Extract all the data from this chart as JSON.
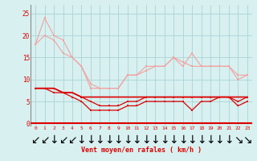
{
  "x": [
    0,
    1,
    2,
    3,
    4,
    5,
    6,
    7,
    8,
    9,
    10,
    11,
    12,
    13,
    14,
    15,
    16,
    17,
    18,
    19,
    20,
    21,
    22,
    23
  ],
  "line1": [
    18,
    24,
    20,
    19,
    15,
    13,
    8,
    8,
    8,
    8,
    11,
    11,
    13,
    13,
    13,
    15,
    13,
    16,
    13,
    13,
    13,
    13,
    10,
    11
  ],
  "line2": [
    18,
    20,
    19,
    16,
    15,
    13,
    9,
    8,
    8,
    8,
    11,
    11,
    12,
    13,
    13,
    15,
    14,
    13,
    13,
    13,
    13,
    13,
    11,
    11
  ],
  "line3": [
    8,
    8,
    8,
    7,
    7,
    6,
    5,
    4,
    4,
    4,
    5,
    5,
    6,
    6,
    6,
    6,
    6,
    6,
    6,
    6,
    6,
    6,
    5,
    6
  ],
  "line4": [
    8,
    8,
    7,
    7,
    6,
    5,
    3,
    3,
    3,
    3,
    4,
    4,
    5,
    5,
    5,
    5,
    5,
    3,
    5,
    5,
    6,
    6,
    4,
    5
  ],
  "line5": [
    8,
    8,
    8,
    7,
    7,
    6,
    6,
    6,
    6,
    6,
    6,
    6,
    6,
    6,
    6,
    6,
    6,
    6,
    6,
    6,
    6,
    6,
    6,
    6
  ],
  "color_light": "#f4a0a0",
  "color_dark": "#dd0000",
  "bg_color": "#d8f0f0",
  "grid_color": "#aad4d4",
  "xlabel": "Vent moyen/en rafales ( km/h )",
  "yticks": [
    0,
    5,
    10,
    15,
    20,
    25
  ],
  "ylim": [
    -0.5,
    27
  ],
  "xlim": [
    -0.5,
    23.5
  ],
  "arrow_labels": [
    "↙",
    "↙",
    "↓",
    "↙",
    "↙",
    "↓",
    "↓",
    "↓",
    "↓",
    "↓",
    "↓",
    "↓",
    "↓",
    "↓",
    "↓",
    "↓",
    "↓",
    "↓",
    "↓",
    "↓",
    "↓",
    "↓",
    "↘",
    "↘"
  ]
}
